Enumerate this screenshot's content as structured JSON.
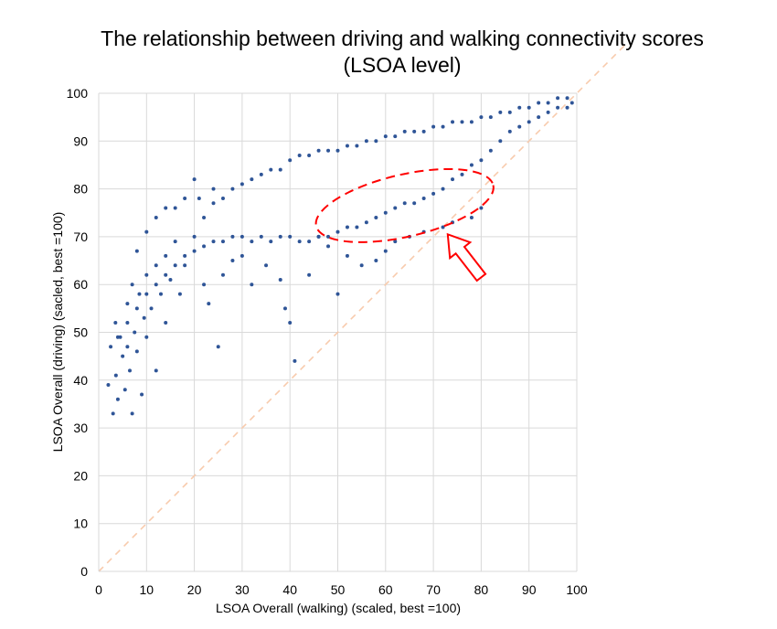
{
  "chart_data": {
    "type": "scatter",
    "title": "The relationship between driving and walking connectivity scores",
    "subtitle": "(LSOA level)",
    "xlabel": "LSOA Overall (walking) (scaled, best =100)",
    "ylabel": "LSOA Overall (driving) (sacled, best =100)",
    "xlim": [
      0,
      100
    ],
    "ylim": [
      0,
      100
    ],
    "x_ticks": [
      0,
      10,
      20,
      30,
      40,
      50,
      60,
      70,
      80,
      90,
      100
    ],
    "y_ticks": [
      0,
      10,
      20,
      30,
      40,
      50,
      60,
      70,
      80,
      90,
      100
    ],
    "grid": true,
    "legend": "none",
    "point_color": "#2f5597",
    "reference_line": {
      "style": "dashed",
      "color": "#f8cbad",
      "from": [
        0,
        0
      ],
      "to": [
        110,
        110
      ]
    },
    "annotations": [
      {
        "type": "ellipse",
        "style": "dashed",
        "color": "#ff0000",
        "center": [
          64,
          76.5
        ],
        "radius_x": 19,
        "radius_y": 6.5,
        "rotation_deg": -13
      },
      {
        "type": "arrow",
        "style": "outline",
        "color": "#ff0000",
        "tip": [
          73,
          70.5
        ],
        "tail": [
          80,
          61.5
        ]
      }
    ],
    "series": [
      {
        "points": [
          [
            2,
            39
          ],
          [
            3,
            33
          ],
          [
            3.6,
            41
          ],
          [
            4,
            36
          ],
          [
            5,
            45
          ],
          [
            5.5,
            38
          ],
          [
            6,
            47
          ],
          [
            6.5,
            42
          ],
          [
            7,
            33
          ],
          [
            7.5,
            50
          ],
          [
            8,
            46
          ],
          [
            9,
            37
          ],
          [
            9.5,
            53
          ],
          [
            10,
            49
          ],
          [
            11,
            55
          ],
          [
            12,
            42
          ],
          [
            13,
            58
          ],
          [
            14,
            52
          ],
          [
            2.5,
            47
          ],
          [
            3.5,
            52
          ],
          [
            4.5,
            49
          ],
          [
            6,
            56
          ],
          [
            7,
            60
          ],
          [
            8.5,
            58
          ],
          [
            10,
            62
          ],
          [
            12,
            64
          ],
          [
            14,
            66
          ],
          [
            16,
            69
          ],
          [
            15,
            61
          ],
          [
            17,
            58
          ],
          [
            18,
            64
          ],
          [
            20,
            82
          ],
          [
            21,
            78
          ],
          [
            24,
            80
          ],
          [
            25,
            47
          ],
          [
            22,
            60
          ],
          [
            23,
            56
          ],
          [
            26,
            62
          ],
          [
            28,
            65
          ],
          [
            30,
            66
          ],
          [
            32,
            60
          ],
          [
            35,
            64
          ],
          [
            38,
            61
          ],
          [
            39,
            55
          ],
          [
            40,
            52
          ],
          [
            41,
            44
          ],
          [
            44,
            62
          ],
          [
            46,
            70
          ],
          [
            48,
            68
          ],
          [
            50,
            58
          ],
          [
            52,
            66
          ],
          [
            55,
            64
          ],
          [
            58,
            65
          ],
          [
            60,
            67
          ],
          [
            62,
            69
          ],
          [
            65,
            70
          ],
          [
            68,
            71
          ],
          [
            72,
            72
          ],
          [
            74,
            73
          ],
          [
            78,
            74
          ],
          [
            80,
            76
          ],
          [
            8,
            67
          ],
          [
            10,
            71
          ],
          [
            12,
            74
          ],
          [
            14,
            76
          ],
          [
            16,
            76
          ],
          [
            18,
            78
          ],
          [
            20,
            70
          ],
          [
            22,
            74
          ],
          [
            24,
            77
          ],
          [
            26,
            78
          ],
          [
            28,
            80
          ],
          [
            30,
            81
          ],
          [
            32,
            82
          ],
          [
            34,
            83
          ],
          [
            36,
            84
          ],
          [
            38,
            84
          ],
          [
            40,
            86
          ],
          [
            42,
            87
          ],
          [
            44,
            87
          ],
          [
            46,
            88
          ],
          [
            48,
            88
          ],
          [
            50,
            88
          ],
          [
            52,
            89
          ],
          [
            54,
            89
          ],
          [
            56,
            90
          ],
          [
            58,
            90
          ],
          [
            60,
            91
          ],
          [
            62,
            91
          ],
          [
            64,
            92
          ],
          [
            66,
            92
          ],
          [
            68,
            92
          ],
          [
            70,
            93
          ],
          [
            72,
            93
          ],
          [
            74,
            94
          ],
          [
            76,
            94
          ],
          [
            78,
            94
          ],
          [
            80,
            95
          ],
          [
            82,
            95
          ],
          [
            84,
            96
          ],
          [
            86,
            96
          ],
          [
            88,
            97
          ],
          [
            90,
            97
          ],
          [
            92,
            98
          ],
          [
            94,
            98
          ],
          [
            96,
            99
          ],
          [
            98,
            99
          ],
          [
            99,
            98
          ],
          [
            86,
            92
          ],
          [
            88,
            93
          ],
          [
            90,
            94
          ],
          [
            92,
            95
          ],
          [
            94,
            96
          ],
          [
            96,
            97
          ],
          [
            98,
            97
          ],
          [
            84,
            90
          ],
          [
            82,
            88
          ],
          [
            80,
            86
          ],
          [
            78,
            85
          ],
          [
            76,
            83
          ],
          [
            74,
            82
          ],
          [
            72,
            80
          ],
          [
            70,
            79
          ],
          [
            68,
            78
          ],
          [
            66,
            77
          ],
          [
            64,
            77
          ],
          [
            62,
            76
          ],
          [
            60,
            75
          ],
          [
            58,
            74
          ],
          [
            56,
            73
          ],
          [
            54,
            72
          ],
          [
            52,
            72
          ],
          [
            50,
            71
          ],
          [
            48,
            70
          ],
          [
            46,
            70
          ],
          [
            44,
            69
          ],
          [
            42,
            69
          ],
          [
            40,
            70
          ],
          [
            38,
            70
          ],
          [
            36,
            69
          ],
          [
            34,
            70
          ],
          [
            32,
            69
          ],
          [
            30,
            70
          ],
          [
            28,
            70
          ],
          [
            26,
            69
          ],
          [
            24,
            69
          ],
          [
            22,
            68
          ],
          [
            20,
            67
          ],
          [
            18,
            66
          ],
          [
            16,
            64
          ],
          [
            14,
            62
          ],
          [
            12,
            60
          ],
          [
            10,
            58
          ],
          [
            8,
            55
          ],
          [
            6,
            52
          ],
          [
            4,
            49
          ]
        ]
      }
    ]
  }
}
